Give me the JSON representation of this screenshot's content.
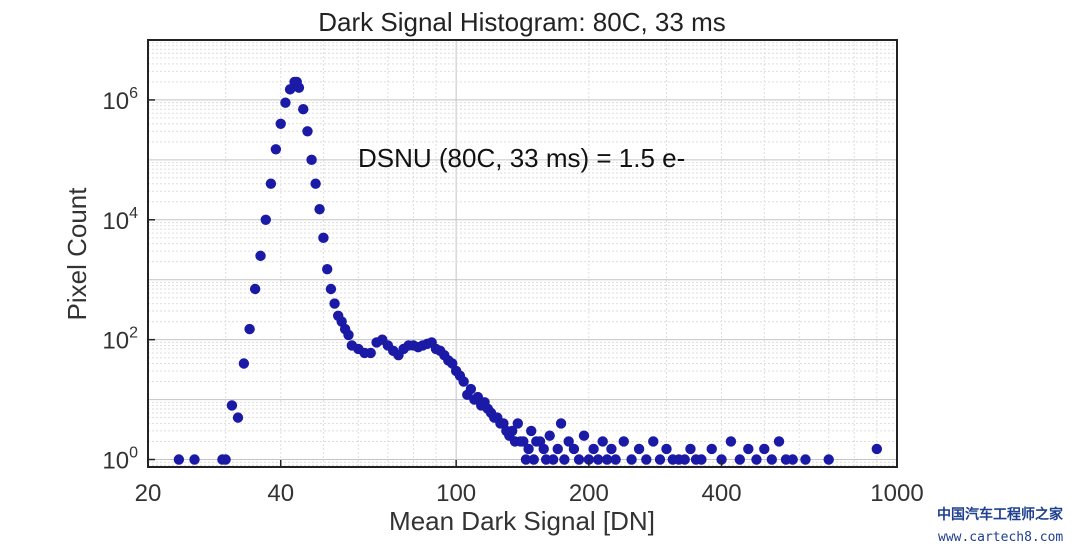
{
  "chart_data": {
    "type": "scatter",
    "title": "Dark Signal Histogram: 80C, 33 ms",
    "xlabel": "Mean Dark Signal [DN]",
    "ylabel": "Pixel Count",
    "x_scale": "log",
    "y_scale": "log",
    "xlim": [
      20,
      1000
    ],
    "ylim": [
      0.75,
      10000000
    ],
    "x_ticks": [
      20,
      40,
      100,
      200,
      400,
      1000
    ],
    "x_tick_labels": [
      "20",
      "40",
      "100",
      "200",
      "400",
      "1000"
    ],
    "y_ticks": [
      1,
      100,
      10000,
      1000000
    ],
    "y_tick_labels": [
      {
        "base": "10",
        "exp": "0"
      },
      {
        "base": "10",
        "exp": "2"
      },
      {
        "base": "10",
        "exp": "4"
      },
      {
        "base": "10",
        "exp": "6"
      }
    ],
    "grid": true,
    "annotation": "DSNU (80C, 33 ms) = 1.5 e-",
    "marker_color": "#1a1aa6",
    "points": [
      [
        23.5,
        1
      ],
      [
        25.5,
        1
      ],
      [
        29.5,
        1
      ],
      [
        30,
        1
      ],
      [
        31,
        8
      ],
      [
        32,
        5
      ],
      [
        33,
        40
      ],
      [
        34,
        150
      ],
      [
        35,
        700
      ],
      [
        36,
        2500
      ],
      [
        37,
        10000
      ],
      [
        38,
        40000
      ],
      [
        39,
        150000
      ],
      [
        40,
        400000
      ],
      [
        41,
        900000
      ],
      [
        42,
        1500000
      ],
      [
        43,
        2000000
      ],
      [
        43.5,
        2000000
      ],
      [
        44,
        1600000
      ],
      [
        45,
        700000
      ],
      [
        46,
        300000
      ],
      [
        47,
        100000
      ],
      [
        48,
        40000
      ],
      [
        49,
        15000
      ],
      [
        50,
        5000
      ],
      [
        51,
        1500
      ],
      [
        52,
        700
      ],
      [
        53,
        400
      ],
      [
        54,
        250
      ],
      [
        55,
        200
      ],
      [
        56,
        150
      ],
      [
        57,
        120
      ],
      [
        58,
        80
      ],
      [
        60,
        70
      ],
      [
        62,
        60
      ],
      [
        64,
        60
      ],
      [
        66,
        90
      ],
      [
        68,
        100
      ],
      [
        70,
        80
      ],
      [
        72,
        65
      ],
      [
        74,
        55
      ],
      [
        76,
        70
      ],
      [
        78,
        80
      ],
      [
        80,
        80
      ],
      [
        82,
        75
      ],
      [
        84,
        80
      ],
      [
        86,
        85
      ],
      [
        88,
        90
      ],
      [
        90,
        70
      ],
      [
        92,
        65
      ],
      [
        94,
        55
      ],
      [
        96,
        45
      ],
      [
        98,
        40
      ],
      [
        100,
        30
      ],
      [
        102,
        25
      ],
      [
        104,
        20
      ],
      [
        106,
        12
      ],
      [
        108,
        15
      ],
      [
        110,
        10
      ],
      [
        112,
        11
      ],
      [
        114,
        8
      ],
      [
        116,
        9
      ],
      [
        118,
        7
      ],
      [
        120,
        6
      ],
      [
        122,
        5
      ],
      [
        124,
        5
      ],
      [
        126,
        4
      ],
      [
        128,
        4
      ],
      [
        130,
        3
      ],
      [
        132,
        2.5
      ],
      [
        134,
        3
      ],
      [
        136,
        2
      ],
      [
        138,
        4
      ],
      [
        140,
        2
      ],
      [
        142,
        2
      ],
      [
        144,
        1
      ],
      [
        146,
        1.5
      ],
      [
        148,
        3
      ],
      [
        150,
        1
      ],
      [
        152,
        2
      ],
      [
        155,
        2
      ],
      [
        158,
        1.5
      ],
      [
        160,
        1
      ],
      [
        163,
        2.5
      ],
      [
        166,
        1
      ],
      [
        170,
        1.5
      ],
      [
        173,
        4
      ],
      [
        176,
        1
      ],
      [
        180,
        2
      ],
      [
        185,
        1.5
      ],
      [
        190,
        1
      ],
      [
        195,
        2.5
      ],
      [
        200,
        1
      ],
      [
        205,
        1.5
      ],
      [
        210,
        1
      ],
      [
        215,
        2
      ],
      [
        220,
        1
      ],
      [
        225,
        1.5
      ],
      [
        230,
        1
      ],
      [
        240,
        2
      ],
      [
        250,
        1
      ],
      [
        260,
        1.5
      ],
      [
        270,
        1
      ],
      [
        280,
        2
      ],
      [
        290,
        1
      ],
      [
        300,
        1.5
      ],
      [
        310,
        1
      ],
      [
        320,
        1
      ],
      [
        330,
        1
      ],
      [
        340,
        1.5
      ],
      [
        350,
        1
      ],
      [
        360,
        1
      ],
      [
        380,
        1.5
      ],
      [
        400,
        1
      ],
      [
        420,
        2
      ],
      [
        440,
        1
      ],
      [
        460,
        1.5
      ],
      [
        480,
        1
      ],
      [
        500,
        1.5
      ],
      [
        520,
        1
      ],
      [
        540,
        2
      ],
      [
        560,
        1
      ],
      [
        580,
        1
      ],
      [
        620,
        1
      ],
      [
        700,
        1
      ],
      [
        900,
        1.5
      ]
    ]
  },
  "watermark": {
    "line1": "中国汽车工程师之家",
    "line2": "www.cartech8.com"
  }
}
